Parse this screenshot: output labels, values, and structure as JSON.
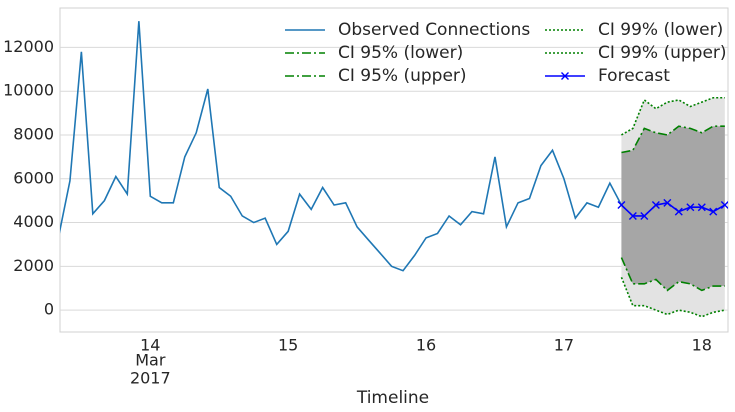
{
  "chart_data": {
    "type": "line",
    "x_label": "Timeline",
    "x_month_label": "Mar",
    "x_year_label": "2017",
    "xlim": [
      13.345,
      18.19
    ],
    "xticks": [
      14,
      15,
      16,
      17,
      18
    ],
    "ylim": [
      -1000,
      13800
    ],
    "yticks": [
      0,
      2000,
      4000,
      6000,
      8000,
      10000,
      12000
    ],
    "grid": true,
    "legend": "upper right",
    "series": [
      {
        "name": "Observed Connections",
        "color": "#1f77b4",
        "style": "solid",
        "x": [
          13.333,
          13.417,
          13.5,
          13.583,
          13.667,
          13.75,
          13.833,
          13.917,
          14.0,
          14.083,
          14.167,
          14.25,
          14.333,
          14.417,
          14.5,
          14.583,
          14.667,
          14.75,
          14.833,
          14.917,
          15.0,
          15.083,
          15.167,
          15.25,
          15.333,
          15.417,
          15.5,
          15.583,
          15.667,
          15.75,
          15.833,
          15.917,
          16.0,
          16.083,
          16.167,
          16.25,
          16.333,
          16.417,
          16.5,
          16.583,
          16.667,
          16.75,
          16.833,
          16.917,
          17.0,
          17.083,
          17.167,
          17.25,
          17.333,
          17.417
        ],
        "values": [
          3300,
          5900,
          11800,
          4400,
          5000,
          6100,
          5300,
          13200,
          5200,
          4900,
          4900,
          7000,
          8100,
          10100,
          5600,
          5200,
          4300,
          4000,
          4200,
          3000,
          3600,
          5300,
          4600,
          5600,
          4800,
          4900,
          3800,
          3200,
          2600,
          2000,
          1800,
          2500,
          3300,
          3500,
          4300,
          3900,
          4500,
          4400,
          7000,
          3800,
          4900,
          5100,
          6600,
          7300,
          6000,
          4200,
          4900,
          4700,
          5800,
          4800
        ]
      },
      {
        "name": "CI 95% (lower)",
        "color": "#008000",
        "style": "dashdot",
        "x": [
          17.417,
          17.5,
          17.583,
          17.667,
          17.75,
          17.833,
          17.917,
          18.0,
          18.083,
          18.167
        ],
        "values": [
          2400,
          1200,
          1200,
          1400,
          900,
          1300,
          1200,
          900,
          1100,
          1100
        ]
      },
      {
        "name": "CI 95% (upper)",
        "color": "#008000",
        "style": "dashdot",
        "fill": "#a6a6a6",
        "x": [
          17.417,
          17.5,
          17.583,
          17.667,
          17.75,
          17.833,
          17.917,
          18.0,
          18.083,
          18.167
        ],
        "values": [
          7200,
          7300,
          8300,
          8100,
          8000,
          8400,
          8300,
          8100,
          8400,
          8400
        ]
      },
      {
        "name": "CI 99% (lower)",
        "color": "#008000",
        "style": "dotted",
        "x": [
          17.417,
          17.5,
          17.583,
          17.667,
          17.75,
          17.833,
          17.917,
          18.0,
          18.083,
          18.167
        ],
        "values": [
          1500,
          200,
          200,
          0,
          -200,
          0,
          -100,
          -300,
          -100,
          0
        ]
      },
      {
        "name": "CI 99% (upper)",
        "color": "#008000",
        "style": "dotted",
        "fill": "#e3e3e3",
        "x": [
          17.417,
          17.5,
          17.583,
          17.667,
          17.75,
          17.833,
          17.917,
          18.0,
          18.083,
          18.167
        ],
        "values": [
          8000,
          8300,
          9600,
          9200,
          9500,
          9600,
          9300,
          9500,
          9700,
          9700
        ]
      },
      {
        "name": "Forecast",
        "color": "#0000ff",
        "style": "solid",
        "marker": "x",
        "x": [
          17.417,
          17.5,
          17.583,
          17.667,
          17.75,
          17.833,
          17.917,
          18.0,
          18.083,
          18.167
        ],
        "values": [
          4800,
          4300,
          4300,
          4800,
          4900,
          4500,
          4700,
          4700,
          4500,
          4800
        ]
      }
    ]
  }
}
